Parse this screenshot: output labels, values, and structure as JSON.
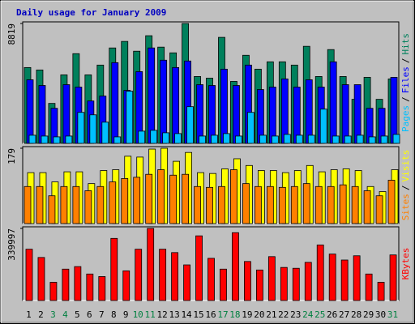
{
  "title": "Daily usage for January 2009",
  "categories": [
    "1",
    "2",
    "3",
    "4",
    "5",
    "6",
    "7",
    "8",
    "9",
    "10",
    "11",
    "12",
    "13",
    "14",
    "15",
    "16",
    "17",
    "18",
    "19",
    "20",
    "21",
    "22",
    "23",
    "24",
    "25",
    "26",
    "27",
    "28",
    "29",
    "30",
    "31"
  ],
  "weekend": [
    false,
    false,
    true,
    true,
    false,
    false,
    false,
    false,
    false,
    true,
    true,
    false,
    false,
    false,
    false,
    false,
    true,
    true,
    false,
    false,
    false,
    false,
    false,
    true,
    true,
    false,
    false,
    false,
    false,
    false,
    true
  ],
  "weekend_color": "#008040",
  "legend_separator": "/",
  "chart_data": [
    {
      "type": "bar",
      "ylim": [
        0,
        8819
      ],
      "yticks": [
        8819
      ],
      "series": [
        {
          "name": "Hits",
          "color": "#00805c",
          "values": [
            5580,
            5400,
            2940,
            5040,
            6600,
            5040,
            5760,
            7020,
            7500,
            6780,
            7920,
            7080,
            6660,
            8819,
            4920,
            4800,
            7800,
            4560,
            6480,
            5460,
            6000,
            6000,
            5760,
            7140,
            4920,
            6900,
            4920,
            3240,
            4860,
            3240,
            4740
          ]
        },
        {
          "name": "Files",
          "color": "#0000ff",
          "values": [
            4680,
            4260,
            2580,
            4320,
            4140,
            3120,
            3480,
            5940,
            3900,
            5280,
            7020,
            6120,
            5580,
            6060,
            4320,
            4260,
            5460,
            4260,
            5760,
            3960,
            4140,
            4740,
            4140,
            4680,
            4140,
            6000,
            4320,
            4320,
            2580,
            2580,
            4860
          ]
        },
        {
          "name": "Pages",
          "color": "#00c0ff",
          "values": [
            600,
            540,
            480,
            540,
            2280,
            2100,
            1560,
            480,
            3840,
            900,
            960,
            780,
            720,
            2700,
            540,
            600,
            720,
            540,
            2280,
            600,
            540,
            660,
            600,
            600,
            2520,
            540,
            540,
            600,
            480,
            540,
            660
          ]
        }
      ]
    },
    {
      "type": "bar",
      "ylim": [
        0,
        179
      ],
      "yticks": [
        179
      ],
      "series": [
        {
          "name": "Visits",
          "color": "#ffff00",
          "values": [
            121,
            121,
            99,
            123,
            123,
            95,
            126,
            128,
            160,
            158,
            177,
            179,
            148,
            169,
            121,
            119,
            130,
            154,
            138,
            126,
            126,
            121,
            126,
            138,
            123,
            128,
            130,
            126,
            88,
            76,
            128
          ]
        },
        {
          "name": "Sites",
          "color": "#ff8000",
          "values": [
            88,
            88,
            66,
            88,
            88,
            78,
            88,
            99,
            107,
            110,
            117,
            128,
            115,
            117,
            88,
            86,
            88,
            128,
            95,
            88,
            88,
            86,
            88,
            95,
            88,
            88,
            92,
            88,
            78,
            66,
            103
          ]
        }
      ]
    },
    {
      "type": "bar",
      "ylim": [
        0,
        339997
      ],
      "yticks": [
        339997
      ],
      "series": [
        {
          "name": "KBytes",
          "color": "#ff0000",
          "values": [
            242000,
            203000,
            86000,
            148000,
            160000,
            125000,
            113000,
            293000,
            140000,
            242000,
            339997,
            242000,
            226000,
            168000,
            305000,
            199000,
            148000,
            320000,
            184000,
            144000,
            207000,
            156000,
            152000,
            180000,
            262000,
            219000,
            191000,
            211000,
            125000,
            86000,
            215000
          ]
        }
      ]
    }
  ]
}
